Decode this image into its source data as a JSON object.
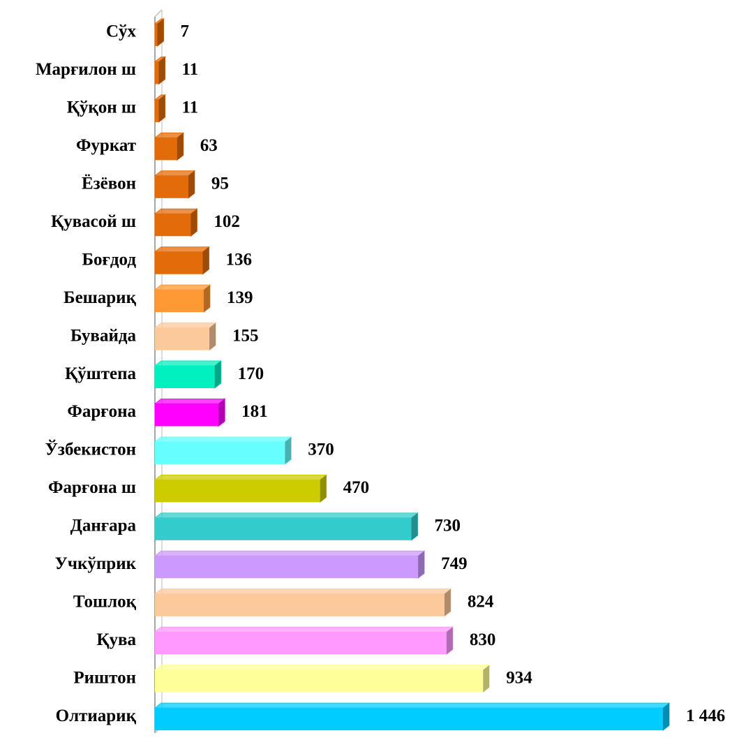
{
  "chart_data": {
    "type": "bar",
    "orientation": "horizontal",
    "categories": [
      "Сўх",
      "Марғилон ш",
      "Қўқон ш",
      "Фуркат",
      "Ёзёвон",
      "Қувасой ш",
      "Боғдод",
      "Бешариқ",
      "Бувайда",
      "Қўштепа",
      "Фарғона",
      "Ўзбекистон",
      "Фарғона ш",
      "Данғара",
      "Учкўприк",
      "Тошлоқ",
      "Қува",
      "Риштон",
      "Олтиариқ"
    ],
    "values": [
      7,
      11,
      11,
      63,
      95,
      102,
      136,
      139,
      155,
      170,
      181,
      370,
      470,
      730,
      749,
      824,
      830,
      934,
      1446
    ],
    "value_labels": [
      "7",
      "11",
      "11",
      "63",
      "95",
      "102",
      "136",
      "139",
      "155",
      "170",
      "181",
      "370",
      "470",
      "730",
      "749",
      "824",
      "830",
      "934",
      "1 446"
    ],
    "colors": [
      "#e36c0a",
      "#e36c0a",
      "#e36c0a",
      "#e36c0a",
      "#e36c0a",
      "#e36c0a",
      "#e36c0a",
      "#ff9933",
      "#fcc99b",
      "#00f0c0",
      "#ff00ff",
      "#66ffff",
      "#cccc00",
      "#33cccc",
      "#cc99ff",
      "#fcc99b",
      "#ff99ff",
      "#ffff99",
      "#00ccff"
    ]
  }
}
